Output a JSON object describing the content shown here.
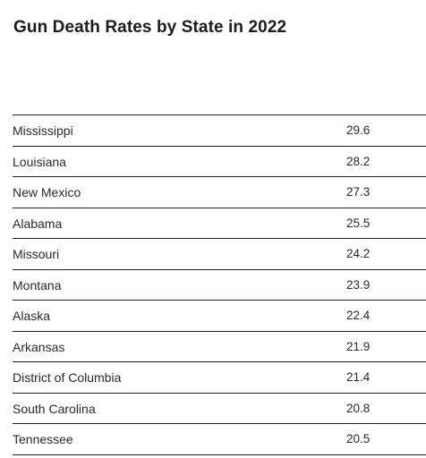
{
  "chart_data": {
    "type": "table",
    "title": "Gun Death Rates by State in 2022",
    "rows": [
      {
        "state": "Mississippi",
        "rate": "29.6"
      },
      {
        "state": "Louisiana",
        "rate": "28.2"
      },
      {
        "state": "New Mexico",
        "rate": "27.3"
      },
      {
        "state": "Alabama",
        "rate": "25.5"
      },
      {
        "state": "Missouri",
        "rate": "24.2"
      },
      {
        "state": "Montana",
        "rate": "23.9"
      },
      {
        "state": "Alaska",
        "rate": "22.4"
      },
      {
        "state": "Arkansas",
        "rate": "21.9"
      },
      {
        "state": "District of Columbia",
        "rate": "21.4"
      },
      {
        "state": "South Carolina",
        "rate": "20.8"
      },
      {
        "state": "Tennessee",
        "rate": "20.5"
      }
    ]
  }
}
